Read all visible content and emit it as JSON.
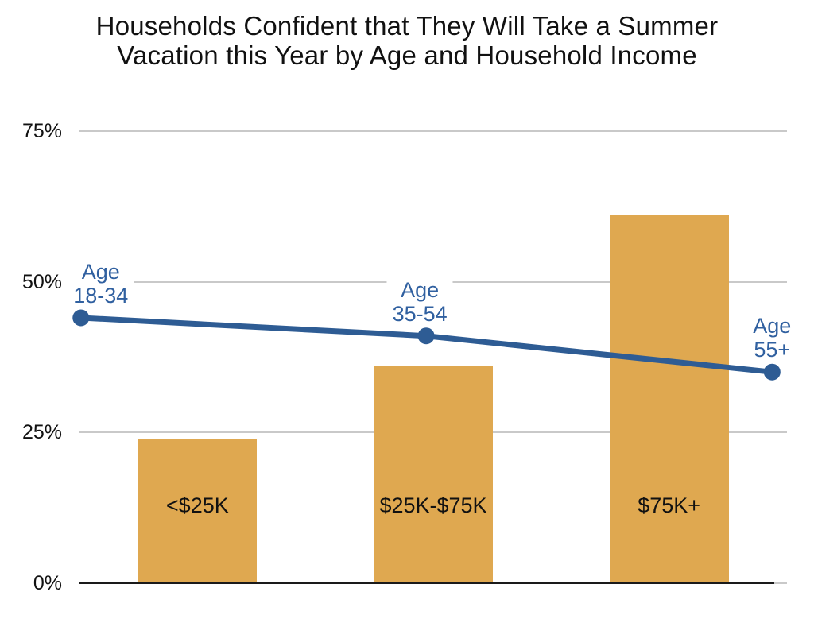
{
  "title": {
    "line1": "Households Confident that They Will Take a Summer",
    "line2": "Vacation this Year by Age and Household Income"
  },
  "chart_data": {
    "type": "bar",
    "title": "Households Confident that They Will Take a Summer Vacation this Year by Age and Household Income",
    "categories": [
      "<$25K",
      "$25K-$75K",
      "$75K+"
    ],
    "series": [
      {
        "name": "Household income",
        "type": "bar",
        "values": [
          24,
          36,
          61
        ]
      },
      {
        "name": "Age",
        "type": "line",
        "values": [
          44,
          41,
          35
        ],
        "point_labels": [
          [
            "Age",
            "18-34"
          ],
          [
            "Age",
            "35-54"
          ],
          [
            "Age",
            "55+"
          ]
        ],
        "x_frac": [
          0.002,
          0.49,
          0.979
        ],
        "label_dx": [
          25,
          -8,
          0
        ]
      }
    ],
    "yticks": [
      {
        "label": "0%",
        "value": 0
      },
      {
        "label": "25%",
        "value": 25
      },
      {
        "label": "50%",
        "value": 50
      },
      {
        "label": "75%",
        "value": 75
      }
    ],
    "ylim": [
      0,
      78
    ],
    "xlabel": "",
    "ylabel": "",
    "grid": true,
    "legend_position": "none",
    "colors": {
      "bar": "#DFA850",
      "line": "#2E5C94",
      "marker": "#2E5C94",
      "point_label": "#3060A0",
      "gridline": "#C9C9C9",
      "axis": "#1A1A1A",
      "bar_label": "#111111",
      "tick_label": "#111111"
    }
  }
}
